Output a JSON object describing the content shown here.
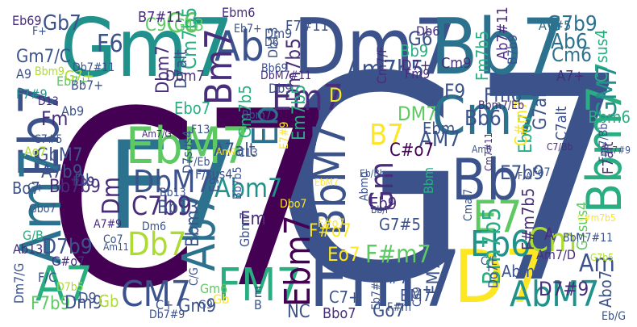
{
  "colors": {
    "background": "#ffffff",
    "palette_name": "viridis",
    "palette": [
      "#440154",
      "#472d7b",
      "#3b528b",
      "#2c728e",
      "#21918c",
      "#28ae80",
      "#5ec962",
      "#addc30",
      "#fde725"
    ]
  },
  "words": [
    {
      "text": "G7",
      "color": "#3b528b"
    },
    {
      "text": "C7",
      "color": "#440154"
    },
    {
      "text": "Gm7",
      "color": "#21918c"
    },
    {
      "text": "Dm7",
      "color": "#3b528b"
    },
    {
      "text": "Bb7",
      "color": "#2c728e"
    },
    {
      "text": "F7",
      "color": "#2c728e"
    },
    {
      "text": "Fm7",
      "color": "#3b528b"
    },
    {
      "text": "D7",
      "color": "#fde725"
    },
    {
      "text": "Eb7",
      "color": "#3b528b"
    },
    {
      "text": "Am7",
      "color": "#2c728e"
    },
    {
      "text": "EbM7",
      "color": "#5ec962"
    },
    {
      "text": "Bb",
      "color": "#3b528b"
    },
    {
      "text": "Cm7",
      "color": "#2c728e"
    },
    {
      "text": "Bbm7",
      "color": "#28ae80"
    },
    {
      "text": "BbM7",
      "color": "#3b528b"
    },
    {
      "text": "Ab7",
      "color": "#2c728e"
    },
    {
      "text": "FM7",
      "color": "#28ae80"
    },
    {
      "text": "AbM7",
      "color": "#21918c"
    },
    {
      "text": "Ebm7",
      "color": "#440154"
    },
    {
      "text": "E7",
      "color": "#5ec962"
    },
    {
      "text": "Eb6",
      "color": "#21918c"
    },
    {
      "text": "Gm",
      "color": "#472d7b"
    },
    {
      "text": "A7",
      "color": "#28ae80"
    },
    {
      "text": "Ab",
      "color": "#3b528b"
    },
    {
      "text": "Bm7",
      "color": "#472d7b"
    },
    {
      "text": "Em7",
      "color": "#472d7b"
    },
    {
      "text": "Am7b5",
      "color": "#3b528b"
    },
    {
      "text": "DbM7",
      "color": "#3b528b"
    },
    {
      "text": "Db7",
      "color": "#addc30"
    },
    {
      "text": "C6",
      "color": "#5ec962"
    },
    {
      "text": "CM7",
      "color": "#3b528b"
    },
    {
      "text": "Cm",
      "color": "#addc30"
    },
    {
      "text": "Am",
      "color": "#3b528b"
    },
    {
      "text": "B7",
      "color": "#fde725"
    },
    {
      "text": "GM7",
      "color": "#21918c"
    },
    {
      "text": "C7b9",
      "color": "#472d7b"
    },
    {
      "text": "Abm7",
      "color": "#21918c"
    },
    {
      "text": "Bm7b5",
      "color": "#28ae80"
    },
    {
      "text": "G7b9",
      "color": "#2c728e"
    },
    {
      "text": "Eb",
      "color": "#2c728e"
    },
    {
      "text": "Dm",
      "color": "#472d7b"
    },
    {
      "text": "F#m7",
      "color": "#5ec962"
    },
    {
      "text": "Dm7b5",
      "color": "#472d7b"
    },
    {
      "text": "Em7b5",
      "color": "#28ae80"
    },
    {
      "text": "Ab6",
      "color": "#2c728e"
    },
    {
      "text": "Bb6",
      "color": "#3b528b"
    },
    {
      "text": "AM7",
      "color": "#3b528b"
    },
    {
      "text": "D7b9",
      "color": "#3b528b"
    },
    {
      "text": "F6",
      "color": "#3b528b"
    },
    {
      "text": "Gb7",
      "color": "#3b528b"
    },
    {
      "text": "Ebo7",
      "color": "#28ae80"
    },
    {
      "text": "Ebm",
      "color": "#3b528b"
    },
    {
      "text": "A7b9",
      "color": "#3b528b"
    },
    {
      "text": "GbM7",
      "color": "#3b528b"
    },
    {
      "text": "Cm7b5",
      "color": "#28ae80"
    },
    {
      "text": "Dbm7",
      "color": "#472d7b"
    },
    {
      "text": "G6",
      "color": "#3b528b"
    },
    {
      "text": "Cm6",
      "color": "#2c728e"
    },
    {
      "text": "G13",
      "color": "#5ec962"
    },
    {
      "text": "Fm",
      "color": "#472d7b"
    },
    {
      "text": "Fm6",
      "color": "#3b528b"
    },
    {
      "text": "DM7",
      "color": "#5ec962"
    },
    {
      "text": "F9",
      "color": "#3b528b"
    },
    {
      "text": "Fm7b5",
      "color": "#28ae80"
    },
    {
      "text": "Bb9",
      "color": "#28ae80"
    },
    {
      "text": "C#o7",
      "color": "#440154"
    },
    {
      "text": "E7b9",
      "color": "#3b528b"
    },
    {
      "text": "Gm7b5",
      "color": "#28ae80"
    },
    {
      "text": "Em",
      "color": "#472d7b"
    },
    {
      "text": "Bb13",
      "color": "#3b528b"
    },
    {
      "text": "Eo7",
      "color": "#fde725"
    },
    {
      "text": "F#o7",
      "color": "#fde725"
    },
    {
      "text": "D7#9",
      "color": "#472d7b"
    },
    {
      "text": "G7alt",
      "color": "#3b528b"
    },
    {
      "text": "C7alt",
      "color": "#3b528b"
    },
    {
      "text": "A7alt",
      "color": "#3b528b"
    },
    {
      "text": "Bb7b9",
      "color": "#472d7b"
    },
    {
      "text": "Bbm",
      "color": "#3b528b"
    },
    {
      "text": "Go7",
      "color": "#3b528b"
    },
    {
      "text": "BM7",
      "color": "#3b528b"
    },
    {
      "text": "F#7",
      "color": "#3b528b"
    },
    {
      "text": "C7+",
      "color": "#3b528b"
    },
    {
      "text": "Bbm6",
      "color": "#28ae80"
    },
    {
      "text": "Abm",
      "color": "#3b528b"
    },
    {
      "text": "Eb9",
      "color": "#472d7b"
    },
    {
      "text": "Db",
      "color": "#3b528b"
    },
    {
      "text": "Ebo7",
      "color": "#28ae80"
    },
    {
      "text": "C#m7",
      "color": "#fde725"
    },
    {
      "text": "EM7",
      "color": "#3b528b"
    },
    {
      "text": "G7#5",
      "color": "#3b528b"
    },
    {
      "text": "Abo7",
      "color": "#3b528b"
    },
    {
      "text": "Gm7/C",
      "color": "#3b528b"
    },
    {
      "text": "D7alt",
      "color": "#3b528b"
    },
    {
      "text": "C7sus4",
      "color": "#28ae80"
    },
    {
      "text": "G7sus4",
      "color": "#5ec962"
    },
    {
      "text": "F7alt",
      "color": "#472d7b"
    },
    {
      "text": "Bo7",
      "color": "#3b528b"
    },
    {
      "text": "F7b9",
      "color": "#5ec962"
    },
    {
      "text": "Dm9",
      "color": "#3b528b"
    },
    {
      "text": "Gm9",
      "color": "#3b528b"
    },
    {
      "text": "Gb",
      "color": "#addc30"
    },
    {
      "text": "F7#11",
      "color": "#3b528b"
    },
    {
      "text": "C9",
      "color": "#5ec962"
    },
    {
      "text": "Eb69",
      "color": "#472d7b"
    },
    {
      "text": "B7#11",
      "color": "#472d7b"
    },
    {
      "text": "Ebm6",
      "color": "#472d7b"
    },
    {
      "text": "Db6",
      "color": "#472d7b"
    },
    {
      "text": "A7#5",
      "color": "#2c728e"
    },
    {
      "text": "Ab7#11",
      "color": "#472d7b"
    },
    {
      "text": "B7b9",
      "color": "#3b528b"
    },
    {
      "text": "Cm9",
      "color": "#472d7b"
    },
    {
      "text": "D7+",
      "color": "#472d7b"
    },
    {
      "text": "Eb7+",
      "color": "#5ec962"
    },
    {
      "text": "Cm7/F",
      "color": "#472d7b"
    },
    {
      "text": "A7+",
      "color": "#472d7b"
    },
    {
      "text": "Fm9",
      "color": "#472d7b"
    },
    {
      "text": "Bbm7/Eb",
      "color": "#472d7b"
    },
    {
      "text": "Dbm7",
      "color": "#472d7b"
    },
    {
      "text": "Dm9",
      "color": "#3b528b"
    },
    {
      "text": "Db9",
      "color": "#3b528b"
    },
    {
      "text": "Db13",
      "color": "#3b528b"
    },
    {
      "text": "D7sus4",
      "color": "#3b528b"
    },
    {
      "text": "F/sus4",
      "color": "#3b528b"
    },
    {
      "text": "A9",
      "color": "#3b528b"
    },
    {
      "text": "Bbm9",
      "color": "#addc30"
    },
    {
      "text": "G7+",
      "color": "#addc30"
    },
    {
      "text": "Bb7+",
      "color": "#3b528b"
    },
    {
      "text": "F7#9",
      "color": "#21918c"
    },
    {
      "text": "Ab9",
      "color": "#3b528b"
    },
    {
      "text": "C7#5",
      "color": "#3b528b"
    },
    {
      "text": "Ao7",
      "color": "#addc30"
    },
    {
      "text": "G+",
      "color": "#3b528b"
    },
    {
      "text": "Gbo7",
      "color": "#3b528b"
    },
    {
      "text": "G/B",
      "color": "#28ae80"
    },
    {
      "text": "Ab13",
      "color": "#472d7b"
    },
    {
      "text": "G#o7",
      "color": "#472d7b"
    },
    {
      "text": "Dm7/G",
      "color": "#3b528b"
    },
    {
      "text": "F/C",
      "color": "#3b528b"
    },
    {
      "text": "D7b5",
      "color": "#addc30"
    },
    {
      "text": "D9",
      "color": "#3b528b"
    },
    {
      "text": "Db7#11",
      "color": "#3b528b"
    },
    {
      "text": "DbM7#11",
      "color": "#472d7b"
    },
    {
      "text": "Bb69",
      "color": "#3b528b"
    },
    {
      "text": "D13",
      "color": "#472d7b"
    },
    {
      "text": "F13",
      "color": "#3b528b"
    },
    {
      "text": "Am7/G",
      "color": "#472d7b"
    },
    {
      "text": "C13",
      "color": "#3b528b"
    },
    {
      "text": "Am9",
      "color": "#fde725"
    },
    {
      "text": "F/Eb",
      "color": "#3b528b"
    },
    {
      "text": "E7#9",
      "color": "#fde725"
    },
    {
      "text": "Am6",
      "color": "#3b528b"
    },
    {
      "text": "Cm7#11",
      "color": "#472d7b"
    },
    {
      "text": "C7/Bb",
      "color": "#472d7b"
    },
    {
      "text": "F/A",
      "color": "#3b528b"
    },
    {
      "text": "Fo7",
      "color": "#3b528b"
    },
    {
      "text": "Eb/Bb",
      "color": "#3b528b"
    },
    {
      "text": "Bb/F",
      "color": "#3b528b"
    },
    {
      "text": "Abmo",
      "color": "#3b528b"
    },
    {
      "text": "Bbm",
      "color": "#28ae80"
    },
    {
      "text": "E9",
      "color": "#3b528b"
    },
    {
      "text": "Bb7b5",
      "color": "#3b528b"
    },
    {
      "text": "Dbo7",
      "color": "#fde725"
    },
    {
      "text": "A7#9",
      "color": "#472d7b"
    },
    {
      "text": "Co7",
      "color": "#3b528b"
    },
    {
      "text": "Am11",
      "color": "#3b528b"
    },
    {
      "text": "Dm6",
      "color": "#3b528b"
    },
    {
      "text": "Gbm7",
      "color": "#3b528b"
    },
    {
      "text": "Cmaj7",
      "color": "#3b528b"
    },
    {
      "text": "F#m7b5",
      "color": "#472d7b"
    },
    {
      "text": "A",
      "color": "#472d7b"
    },
    {
      "text": "Am7/D",
      "color": "#472d7b"
    },
    {
      "text": "BbM7#11",
      "color": "#3b528b"
    },
    {
      "text": "C#m7b5",
      "color": "#fde725"
    },
    {
      "text": "G7b5",
      "color": "#addc30"
    },
    {
      "text": "Fm7/Bb",
      "color": "#3b528b"
    },
    {
      "text": "Bb7#9",
      "color": "#3b528b"
    },
    {
      "text": "C/E",
      "color": "#3b528b"
    },
    {
      "text": "C/G",
      "color": "#3b528b"
    },
    {
      "text": "Gm6",
      "color": "#5ec962"
    },
    {
      "text": "Gb",
      "color": "#fde725"
    },
    {
      "text": "Eb7#11",
      "color": "#3b528b"
    },
    {
      "text": "F#m",
      "color": "#3b528b"
    },
    {
      "text": "C69",
      "color": "#3b528b"
    },
    {
      "text": "C+",
      "color": "#3b528b"
    },
    {
      "text": "Db7#9",
      "color": "#3b528b"
    },
    {
      "text": "Do7",
      "color": "#3b528b"
    },
    {
      "text": "Eb/G",
      "color": "#3b528b"
    },
    {
      "text": "Bbo7",
      "color": "#472d7b"
    },
    {
      "text": "Eb9",
      "color": "#472d7b"
    },
    {
      "text": "Bb13",
      "color": "#3b528b"
    },
    {
      "text": "F#o7",
      "color": "#fde725"
    },
    {
      "text": "G9",
      "color": "#3b528b"
    },
    {
      "text": "NC",
      "color": "#3b528b"
    },
    {
      "text": "E",
      "color": "#3b528b"
    },
    {
      "text": "B",
      "color": "#3b528b"
    },
    {
      "text": "D",
      "color": "#fde725"
    },
    {
      "text": "D6",
      "color": "#3b528b"
    },
    {
      "text": "Eb7+",
      "color": "#3b528b"
    },
    {
      "text": "Bbm7",
      "color": "#3b528b"
    },
    {
      "text": "EbM7",
      "color": "#fde725"
    },
    {
      "text": "F+",
      "color": "#3b528b"
    }
  ]
}
